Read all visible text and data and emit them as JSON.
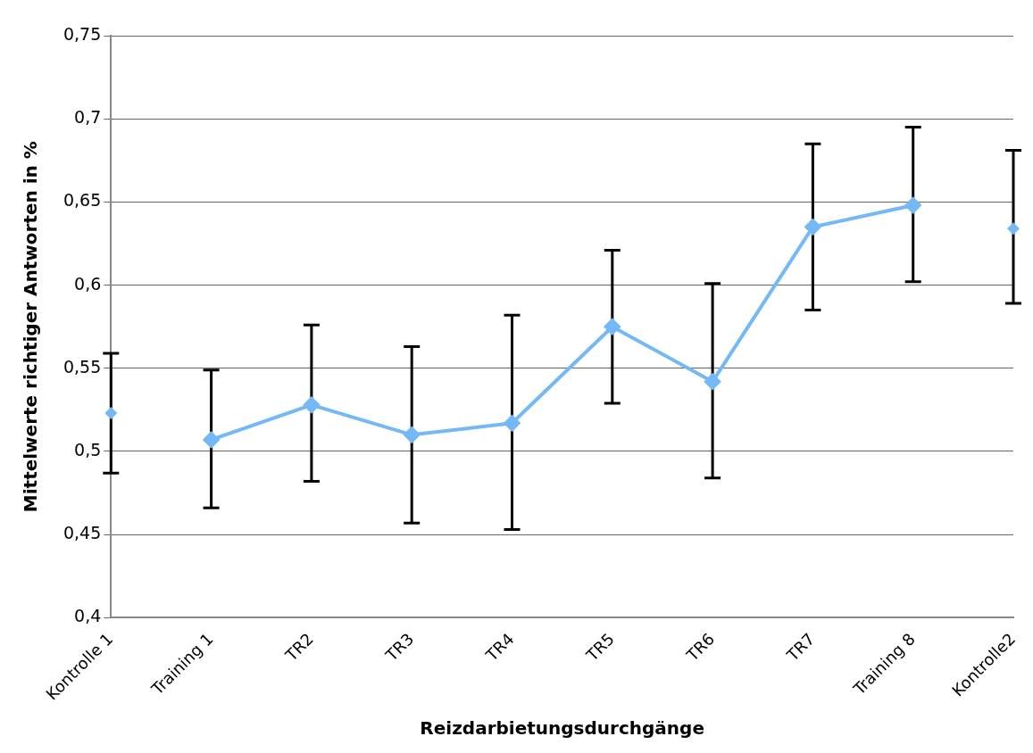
{
  "chart_data": {
    "type": "line",
    "xlabel": "Reizdarbietungsdurchgänge",
    "ylabel": "Mittelwerte richtiger Antworten in %",
    "categories": [
      "Kontrolle 1",
      "Training 1",
      "TR2",
      "TR3",
      "TR4",
      "TR5",
      "TR6",
      "TR7",
      "Training 8",
      "Kontrolle2"
    ],
    "series": [
      {
        "color": "#74b9f5",
        "values": [
          null,
          0.507,
          0.528,
          0.51,
          0.517,
          0.575,
          0.542,
          0.635,
          0.648,
          null
        ],
        "errors": [
          null,
          [
            0.466,
            0.549
          ],
          [
            0.482,
            0.576
          ],
          [
            0.457,
            0.563
          ],
          [
            0.453,
            0.582
          ],
          [
            0.529,
            0.621
          ],
          [
            0.484,
            0.601
          ],
          [
            0.585,
            0.685
          ],
          [
            0.602,
            0.695
          ],
          null
        ]
      },
      {
        "type": "scatter",
        "color": "#74b9f5",
        "values": [
          0.523,
          null,
          null,
          null,
          null,
          null,
          null,
          null,
          null,
          0.634
        ],
        "errors": [
          [
            0.487,
            0.559
          ],
          null,
          null,
          null,
          null,
          null,
          null,
          null,
          null,
          [
            0.589,
            0.681
          ]
        ]
      }
    ],
    "ylim": [
      0.4,
      0.75
    ],
    "yticks": [
      {
        "value": 0.4,
        "label": "0,4"
      },
      {
        "value": 0.45,
        "label": "0,45"
      },
      {
        "value": 0.5,
        "label": "0,5"
      },
      {
        "value": 0.55,
        "label": "0,55"
      },
      {
        "value": 0.6,
        "label": "0,6"
      },
      {
        "value": 0.65,
        "label": "0,65"
      },
      {
        "value": 0.7,
        "label": "0,7"
      },
      {
        "value": 0.75,
        "label": "0,75"
      }
    ],
    "grid": "y",
    "legend": false,
    "marker": "diamond",
    "line_style": "solid"
  }
}
